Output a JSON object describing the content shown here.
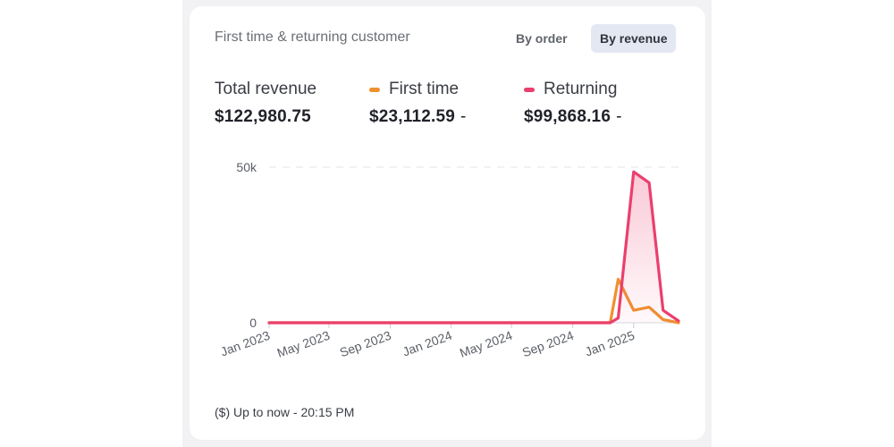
{
  "card": {
    "title": "First time & returning customer",
    "toggle_order": "By order",
    "toggle_revenue": "By revenue",
    "active_toggle": "By revenue"
  },
  "metrics": {
    "total": {
      "label": "Total revenue",
      "value": "$122,980.75"
    },
    "first": {
      "label": "First time",
      "value": "$23,112.59",
      "trend": "-",
      "color": "#f0902f"
    },
    "returning": {
      "label": "Returning",
      "value": "$99,868.16",
      "trend": "-",
      "color": "#ea3f6e"
    }
  },
  "footer": {
    "text": "($) Up to now - 20:15 PM"
  },
  "chart_data": {
    "type": "line",
    "x_type": "time",
    "x_range": [
      "2023-01",
      "2025-04"
    ],
    "x_ticks": [
      "2023-01",
      "2023-05",
      "2023-09",
      "2024-01",
      "2024-05",
      "2024-09",
      "2025-01"
    ],
    "xtick_labels": [
      "Jan 2023",
      "May 2023",
      "Sep 2023",
      "Jan 2024",
      "May 2024",
      "Sep 2024",
      "Jan 2025"
    ],
    "ylim": [
      0,
      50000
    ],
    "yticks": [
      0,
      50000
    ],
    "ytick_labels": [
      "0",
      "50k"
    ],
    "grid": "horizontal dashed",
    "series": [
      {
        "key": "first",
        "color": "#f0902f",
        "area": false,
        "points": [
          [
            "2023-01",
            0
          ],
          [
            "2024-11",
            0
          ],
          [
            "2024-11-15",
            0
          ],
          [
            "2024-12-01",
            14000
          ],
          [
            "2025-01-01",
            4000
          ],
          [
            "2025-02-01",
            5000
          ],
          [
            "2025-03-01",
            1000
          ],
          [
            "2025-04-01",
            0
          ]
        ]
      },
      {
        "key": "returning",
        "color": "#ea3f6e",
        "area": true,
        "points": [
          [
            "2023-01",
            0
          ],
          [
            "2024-11",
            0
          ],
          [
            "2024-11-15",
            0
          ],
          [
            "2024-12-01",
            1500
          ],
          [
            "2025-01-01",
            48500
          ],
          [
            "2025-02-01",
            45000
          ],
          [
            "2025-03-01",
            4000
          ],
          [
            "2025-04-01",
            600
          ]
        ]
      }
    ]
  }
}
